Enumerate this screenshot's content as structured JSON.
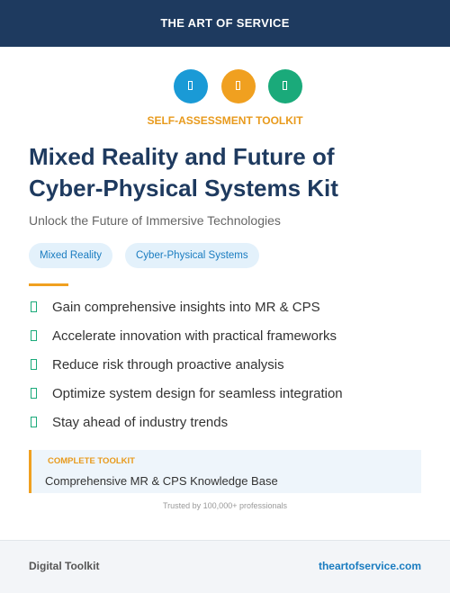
{
  "header": {
    "brand": "THE ART OF SERVICE"
  },
  "hero": {
    "eyebrow": "SELF-ASSESSMENT TOOLKIT",
    "title_lines": [
      "Mixed Reality and Future of",
      "Cyber-Physical Systems Kit"
    ],
    "subtitle": "Unlock the Future of Immersive Technologies",
    "tags": [
      "Mixed Reality",
      "Cyber-Physical Systems"
    ]
  },
  "benefits": [
    "Gain comprehensive insights into MR & CPS",
    "Accelerate innovation with practical frameworks",
    "Reduce risk through proactive analysis",
    "Optimize system design for seamless integration",
    "Stay ahead of industry trends"
  ],
  "callout": {
    "label": "COMPLETE TOOLKIT",
    "text": "Comprehensive MR & CPS Knowledge Base"
  },
  "trust": "Trusted by 100,000+ professionals",
  "footer": {
    "left": "Digital Toolkit",
    "right": "theartofservice.com"
  }
}
